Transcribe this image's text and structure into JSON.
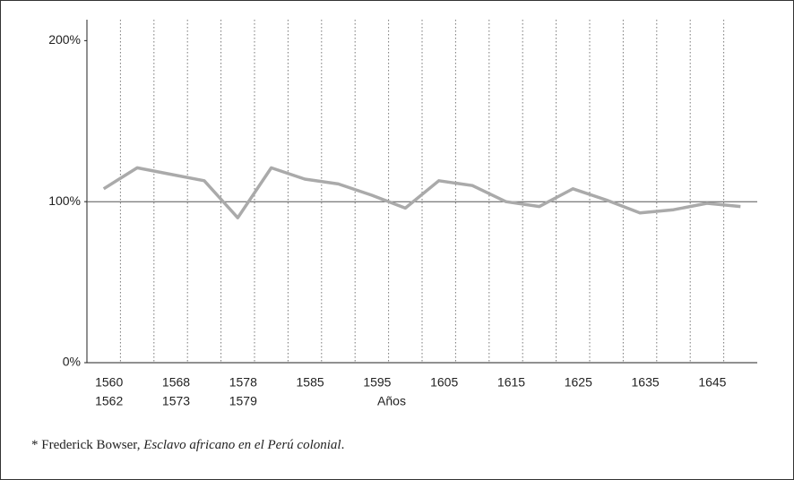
{
  "chart_data": {
    "type": "line",
    "categories": [
      [
        "1560",
        "1562"
      ],
      null,
      [
        "1568",
        "1573"
      ],
      null,
      [
        "1578",
        "1579"
      ],
      null,
      [
        "1585"
      ],
      null,
      [
        "1595"
      ],
      null,
      [
        "1605"
      ],
      null,
      [
        "1615"
      ],
      null,
      [
        "1625"
      ],
      null,
      [
        "1635"
      ],
      null,
      [
        "1645"
      ],
      null
    ],
    "values": [
      108,
      121,
      117,
      113,
      90,
      121,
      114,
      111,
      104,
      96,
      113,
      110,
      100,
      97,
      108,
      101,
      93,
      95,
      99,
      97
    ],
    "color": "#aaaaaa",
    "xlabel": "Años",
    "ylim": [
      0,
      213
    ],
    "yticks": [
      {
        "value": 0,
        "label": "0%"
      },
      {
        "value": 100,
        "label": "100%"
      },
      {
        "value": 200,
        "label": "200%"
      }
    ],
    "reference_line": 100,
    "note": {
      "text": "* Frederick Bowser, ",
      "title": "Esclavo africano en el Perú colonial",
      "end": "."
    }
  }
}
